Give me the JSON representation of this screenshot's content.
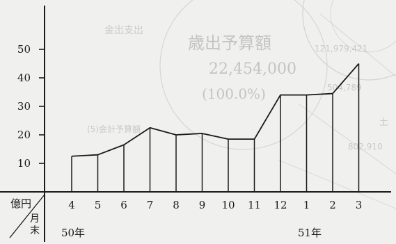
{
  "background_print": {
    "caption": "金出支出",
    "heading": "歳出予算額",
    "amount": "22,454,000",
    "percent": "(100.0%)",
    "note": "(5)会計予算額",
    "side_1": "121,979,421",
    "side_2": "504,789",
    "side_3": "土",
    "side_4": "802,910"
  },
  "chart_data": {
    "type": "bar",
    "unit_label": "億円",
    "x_axis_label": "月末",
    "categories": [
      "4",
      "5",
      "6",
      "7",
      "8",
      "9",
      "10",
      "11",
      "12",
      "1",
      "2",
      "3"
    ],
    "year_labels": [
      {
        "text": "50年",
        "start_index": 0
      },
      {
        "text": "51年",
        "start_index": 9
      }
    ],
    "values": [
      12.5,
      13,
      16.5,
      22.5,
      20,
      20.5,
      18.5,
      18.5,
      34,
      34,
      34.5,
      45
    ],
    "y_ticks": [
      10,
      20,
      30,
      40,
      50
    ],
    "ylim": [
      0,
      60
    ],
    "grid": false,
    "colors": {
      "ink": "#1a1a1a",
      "bars": "#ffffff"
    }
  }
}
